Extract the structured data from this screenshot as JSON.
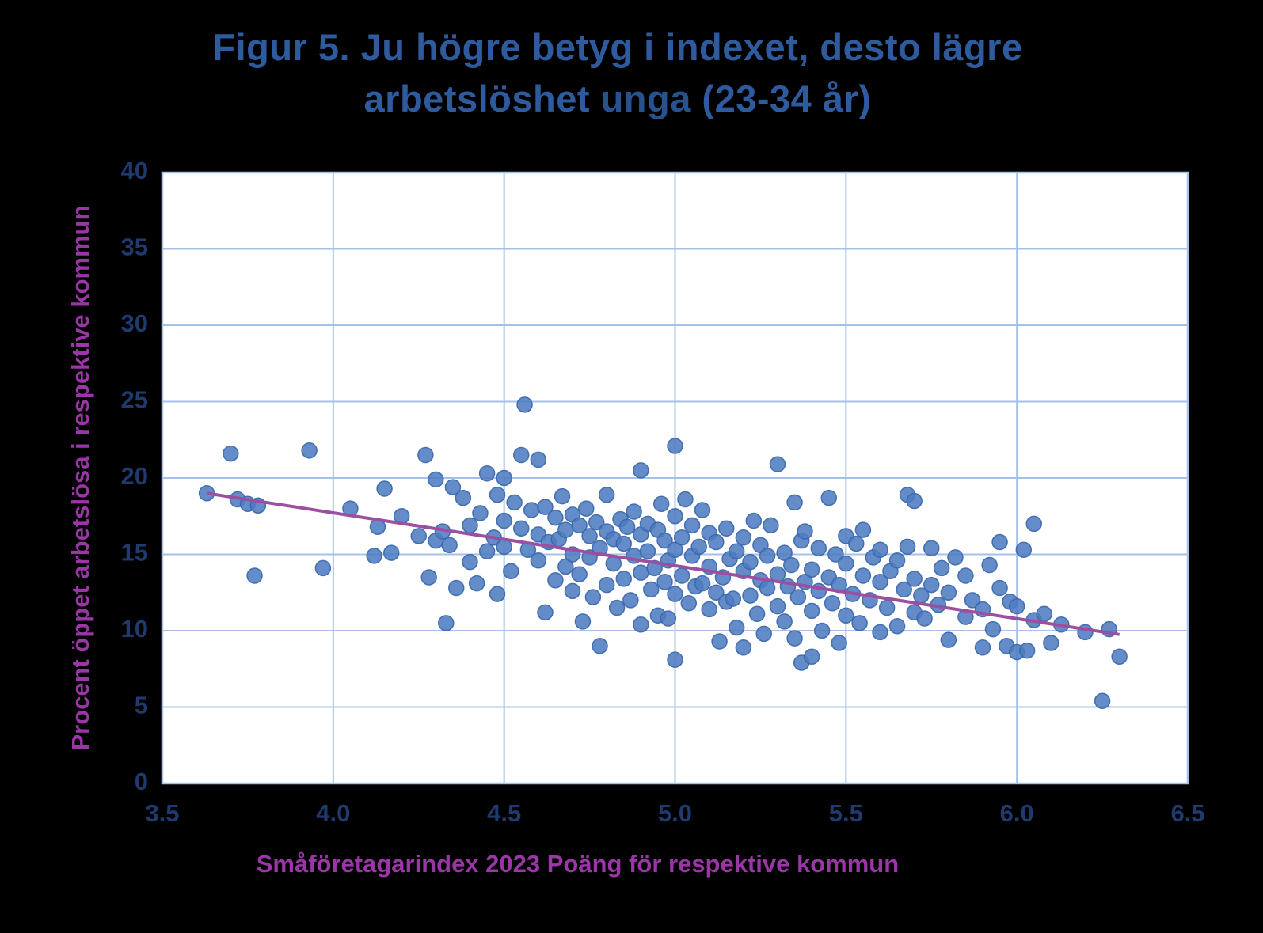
{
  "title": {
    "line1": "Figur 5. Ju högre betyg i indexet, desto lägre",
    "line2_prefix": "arbetslöshet ",
    "line2_bold": "unga",
    "line2_suffix": " (23-34 år)"
  },
  "chart_data": {
    "type": "scatter",
    "title": "Figur 5. Ju högre betyg i indexet, desto lägre arbetslöshet unga (23-34 år)",
    "xlabel": "Småföretagarindex 2023 Poäng för respektive kommun",
    "ylabel": "Procent öppet arbetslösa i respektive kommun",
    "xlim": [
      3.5,
      6.5
    ],
    "ylim": [
      0,
      40
    ],
    "x_ticks": [
      "3.5",
      "4.0",
      "4.5",
      "5.0",
      "5.5",
      "6.0",
      "6.5"
    ],
    "y_ticks": [
      "0",
      "5",
      "10",
      "15",
      "20",
      "25",
      "30",
      "35",
      "40"
    ],
    "grid": true,
    "legend": null,
    "trendline": {
      "x1": 3.63,
      "y1": 19.0,
      "x2": 6.3,
      "y2": 9.75
    },
    "colors": {
      "point": "#4d7cc0",
      "point_stroke": "#3a66a8",
      "trend": "#9c4fa0",
      "grid": "#a6c1e8",
      "title": "#2e5a9e",
      "axis_label": "#9b35a8",
      "tick": "#1f3b6e",
      "plot_bg": "#ffffff",
      "page_bg": "#000000"
    },
    "points": [
      [
        3.63,
        19.0
      ],
      [
        3.7,
        21.6
      ],
      [
        3.72,
        18.6
      ],
      [
        3.75,
        18.3
      ],
      [
        3.77,
        13.6
      ],
      [
        3.78,
        18.2
      ],
      [
        3.93,
        21.8
      ],
      [
        3.97,
        14.1
      ],
      [
        4.05,
        18.0
      ],
      [
        4.12,
        14.9
      ],
      [
        4.13,
        16.8
      ],
      [
        4.15,
        19.3
      ],
      [
        4.17,
        15.1
      ],
      [
        4.2,
        17.5
      ],
      [
        4.25,
        16.2
      ],
      [
        4.27,
        21.5
      ],
      [
        4.28,
        13.5
      ],
      [
        4.3,
        15.9
      ],
      [
        4.3,
        19.9
      ],
      [
        4.32,
        16.5
      ],
      [
        4.33,
        10.5
      ],
      [
        4.34,
        15.6
      ],
      [
        4.35,
        19.4
      ],
      [
        4.36,
        12.8
      ],
      [
        4.38,
        18.7
      ],
      [
        4.4,
        16.9
      ],
      [
        4.4,
        14.5
      ],
      [
        4.42,
        13.1
      ],
      [
        4.43,
        17.7
      ],
      [
        4.45,
        15.2
      ],
      [
        4.45,
        20.3
      ],
      [
        4.47,
        16.1
      ],
      [
        4.48,
        12.4
      ],
      [
        4.48,
        18.9
      ],
      [
        4.5,
        15.5
      ],
      [
        4.5,
        17.2
      ],
      [
        4.5,
        20.0
      ],
      [
        4.52,
        13.9
      ],
      [
        4.53,
        18.4
      ],
      [
        4.55,
        21.5
      ],
      [
        4.55,
        16.7
      ],
      [
        4.56,
        24.8
      ],
      [
        4.57,
        15.3
      ],
      [
        4.58,
        17.9
      ],
      [
        4.6,
        21.2
      ],
      [
        4.6,
        14.6
      ],
      [
        4.6,
        16.3
      ],
      [
        4.62,
        18.1
      ],
      [
        4.62,
        11.2
      ],
      [
        4.63,
        15.8
      ],
      [
        4.65,
        17.4
      ],
      [
        4.65,
        13.3
      ],
      [
        4.66,
        16.0
      ],
      [
        4.67,
        18.8
      ],
      [
        4.68,
        14.2
      ],
      [
        4.68,
        16.6
      ],
      [
        4.7,
        12.6
      ],
      [
        4.7,
        15.0
      ],
      [
        4.7,
        17.6
      ],
      [
        4.72,
        13.7
      ],
      [
        4.72,
        16.9
      ],
      [
        4.73,
        10.6
      ],
      [
        4.74,
        18.0
      ],
      [
        4.75,
        14.8
      ],
      [
        4.75,
        16.2
      ],
      [
        4.76,
        12.2
      ],
      [
        4.77,
        17.1
      ],
      [
        4.78,
        15.4
      ],
      [
        4.78,
        9.0
      ],
      [
        4.8,
        13.0
      ],
      [
        4.8,
        16.5
      ],
      [
        4.8,
        18.9
      ],
      [
        4.82,
        14.4
      ],
      [
        4.82,
        16.0
      ],
      [
        4.83,
        11.5
      ],
      [
        4.84,
        17.3
      ],
      [
        4.85,
        15.7
      ],
      [
        4.85,
        13.4
      ],
      [
        4.86,
        16.8
      ],
      [
        4.87,
        12.0
      ],
      [
        4.88,
        14.9
      ],
      [
        4.88,
        17.8
      ],
      [
        4.9,
        10.4
      ],
      [
        4.9,
        13.8
      ],
      [
        4.9,
        16.3
      ],
      [
        4.9,
        20.5
      ],
      [
        4.92,
        15.2
      ],
      [
        4.92,
        17.0
      ],
      [
        4.93,
        12.7
      ],
      [
        4.94,
        14.1
      ],
      [
        4.95,
        16.6
      ],
      [
        4.95,
        11.0
      ],
      [
        4.96,
        18.3
      ],
      [
        4.97,
        13.2
      ],
      [
        4.97,
        15.9
      ],
      [
        4.98,
        10.8
      ],
      [
        4.98,
        14.6
      ],
      [
        5.0,
        22.1
      ],
      [
        5.0,
        17.5
      ],
      [
        5.0,
        12.4
      ],
      [
        5.0,
        15.3
      ],
      [
        5.0,
        8.1
      ],
      [
        5.02,
        16.1
      ],
      [
        5.02,
        13.6
      ],
      [
        5.03,
        18.6
      ],
      [
        5.04,
        11.8
      ],
      [
        5.05,
        14.9
      ],
      [
        5.05,
        16.9
      ],
      [
        5.06,
        12.9
      ],
      [
        5.07,
        15.5
      ],
      [
        5.08,
        17.9
      ],
      [
        5.08,
        13.1
      ],
      [
        5.1,
        16.4
      ],
      [
        5.1,
        11.4
      ],
      [
        5.1,
        14.2
      ],
      [
        5.12,
        12.5
      ],
      [
        5.12,
        15.8
      ],
      [
        5.13,
        9.3
      ],
      [
        5.14,
        13.5
      ],
      [
        5.15,
        16.7
      ],
      [
        5.15,
        11.9
      ],
      [
        5.16,
        14.7
      ],
      [
        5.17,
        12.1
      ],
      [
        5.18,
        15.2
      ],
      [
        5.18,
        10.2
      ],
      [
        5.2,
        13.9
      ],
      [
        5.2,
        16.1
      ],
      [
        5.2,
        8.9
      ],
      [
        5.22,
        12.3
      ],
      [
        5.22,
        14.5
      ],
      [
        5.23,
        17.2
      ],
      [
        5.24,
        11.1
      ],
      [
        5.25,
        13.3
      ],
      [
        5.25,
        15.6
      ],
      [
        5.26,
        9.8
      ],
      [
        5.27,
        12.8
      ],
      [
        5.27,
        14.9
      ],
      [
        5.28,
        16.9
      ],
      [
        5.3,
        11.6
      ],
      [
        5.3,
        13.7
      ],
      [
        5.3,
        20.9
      ],
      [
        5.32,
        15.1
      ],
      [
        5.32,
        10.6
      ],
      [
        5.33,
        12.9
      ],
      [
        5.34,
        14.3
      ],
      [
        5.35,
        18.4
      ],
      [
        5.35,
        9.5
      ],
      [
        5.36,
        12.2
      ],
      [
        5.37,
        15.9
      ],
      [
        5.37,
        7.9
      ],
      [
        5.38,
        13.2
      ],
      [
        5.38,
        16.5
      ],
      [
        5.4,
        11.3
      ],
      [
        5.4,
        14.0
      ],
      [
        5.4,
        8.3
      ],
      [
        5.42,
        12.6
      ],
      [
        5.42,
        15.4
      ],
      [
        5.43,
        10.0
      ],
      [
        5.45,
        13.5
      ],
      [
        5.45,
        18.7
      ],
      [
        5.46,
        11.8
      ],
      [
        5.47,
        15.0
      ],
      [
        5.48,
        9.2
      ],
      [
        5.48,
        13.0
      ],
      [
        5.5,
        16.2
      ],
      [
        5.5,
        11.0
      ],
      [
        5.5,
        14.4
      ],
      [
        5.52,
        12.4
      ],
      [
        5.53,
        15.7
      ],
      [
        5.54,
        10.5
      ],
      [
        5.55,
        13.6
      ],
      [
        5.55,
        16.6
      ],
      [
        5.57,
        12.0
      ],
      [
        5.58,
        14.8
      ],
      [
        5.6,
        9.9
      ],
      [
        5.6,
        13.2
      ],
      [
        5.6,
        15.3
      ],
      [
        5.62,
        11.5
      ],
      [
        5.63,
        13.9
      ],
      [
        5.65,
        10.3
      ],
      [
        5.65,
        14.6
      ],
      [
        5.67,
        12.7
      ],
      [
        5.68,
        18.9
      ],
      [
        5.68,
        15.5
      ],
      [
        5.7,
        11.2
      ],
      [
        5.7,
        13.4
      ],
      [
        5.7,
        18.5
      ],
      [
        5.72,
        12.3
      ],
      [
        5.73,
        10.8
      ],
      [
        5.75,
        13.0
      ],
      [
        5.75,
        15.4
      ],
      [
        5.77,
        11.7
      ],
      [
        5.78,
        14.1
      ],
      [
        5.8,
        9.4
      ],
      [
        5.8,
        12.5
      ],
      [
        5.82,
        14.8
      ],
      [
        5.85,
        10.9
      ],
      [
        5.85,
        13.6
      ],
      [
        5.87,
        12.0
      ],
      [
        5.9,
        8.9
      ],
      [
        5.9,
        11.4
      ],
      [
        5.92,
        14.3
      ],
      [
        5.93,
        10.1
      ],
      [
        5.95,
        12.8
      ],
      [
        5.95,
        15.8
      ],
      [
        5.97,
        9.0
      ],
      [
        5.98,
        11.9
      ],
      [
        6.0,
        8.6
      ],
      [
        6.0,
        11.6
      ],
      [
        6.02,
        15.3
      ],
      [
        6.03,
        8.7
      ],
      [
        6.05,
        17.0
      ],
      [
        6.05,
        10.7
      ],
      [
        6.08,
        11.1
      ],
      [
        6.1,
        9.2
      ],
      [
        6.13,
        10.4
      ],
      [
        6.2,
        9.9
      ],
      [
        6.25,
        5.4
      ],
      [
        6.27,
        10.1
      ],
      [
        6.3,
        8.3
      ]
    ]
  }
}
